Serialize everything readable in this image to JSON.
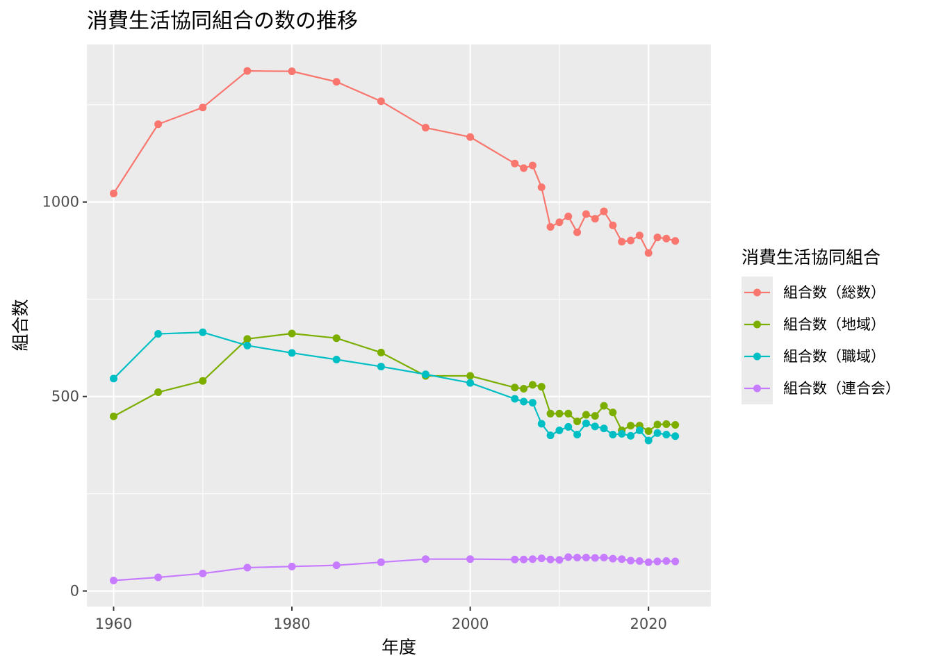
{
  "chart_data": {
    "type": "line",
    "title": "消費生活協同組合の数の推移",
    "xlabel": "年度",
    "ylabel": "組合数",
    "xlim": [
      1957,
      2027
    ],
    "ylim": [
      -40,
      1405
    ],
    "x_ticks": [
      1960,
      1980,
      2000,
      2020
    ],
    "y_ticks": [
      0,
      500,
      1000
    ],
    "grid": true,
    "legend": {
      "title": "消費生活協同組合",
      "position": "right"
    },
    "series": [
      {
        "name": "組合数（総数）",
        "color": "#F8766D",
        "points": [
          [
            1960,
            1022
          ],
          [
            1965,
            1200
          ],
          [
            1970,
            1243
          ],
          [
            1975,
            1337
          ],
          [
            1980,
            1336
          ],
          [
            1985,
            1309
          ],
          [
            1990,
            1259
          ],
          [
            1995,
            1191
          ],
          [
            2000,
            1167
          ],
          [
            2005,
            1099
          ],
          [
            2006,
            1087
          ],
          [
            2007,
            1094
          ],
          [
            2008,
            1038
          ],
          [
            2009,
            936
          ],
          [
            2010,
            948
          ],
          [
            2011,
            963
          ],
          [
            2012,
            922
          ],
          [
            2013,
            969
          ],
          [
            2014,
            957
          ],
          [
            2015,
            976
          ],
          [
            2016,
            940
          ],
          [
            2017,
            898
          ],
          [
            2018,
            901
          ],
          [
            2019,
            914
          ],
          [
            2020,
            869
          ],
          [
            2021,
            909
          ],
          [
            2022,
            906
          ],
          [
            2023,
            900
          ]
        ]
      },
      {
        "name": "組合数（地域）",
        "color": "#7CAE00",
        "points": [
          [
            1960,
            449
          ],
          [
            1965,
            511
          ],
          [
            1970,
            540
          ],
          [
            1975,
            648
          ],
          [
            1980,
            662
          ],
          [
            1985,
            650
          ],
          [
            1990,
            613
          ],
          [
            1995,
            553
          ],
          [
            2000,
            553
          ],
          [
            2005,
            523
          ],
          [
            2006,
            520
          ],
          [
            2007,
            530
          ],
          [
            2008,
            525
          ],
          [
            2009,
            456
          ],
          [
            2010,
            456
          ],
          [
            2011,
            456
          ],
          [
            2012,
            436
          ],
          [
            2013,
            453
          ],
          [
            2014,
            450
          ],
          [
            2015,
            476
          ],
          [
            2016,
            459
          ],
          [
            2017,
            413
          ],
          [
            2018,
            425
          ],
          [
            2019,
            425
          ],
          [
            2020,
            411
          ],
          [
            2021,
            428
          ],
          [
            2022,
            429
          ],
          [
            2023,
            427
          ]
        ]
      },
      {
        "name": "組合数（職域）",
        "color": "#00BFC4",
        "points": [
          [
            1960,
            546
          ],
          [
            1965,
            661
          ],
          [
            1970,
            665
          ],
          [
            1975,
            631
          ],
          [
            1980,
            612
          ],
          [
            1985,
            595
          ],
          [
            1990,
            577
          ],
          [
            1995,
            557
          ],
          [
            2000,
            535
          ],
          [
            2005,
            494
          ],
          [
            2006,
            487
          ],
          [
            2007,
            484
          ],
          [
            2008,
            430
          ],
          [
            2009,
            400
          ],
          [
            2010,
            413
          ],
          [
            2011,
            422
          ],
          [
            2012,
            402
          ],
          [
            2013,
            431
          ],
          [
            2014,
            423
          ],
          [
            2015,
            418
          ],
          [
            2016,
            402
          ],
          [
            2017,
            404
          ],
          [
            2018,
            399
          ],
          [
            2019,
            413
          ],
          [
            2020,
            387
          ],
          [
            2021,
            406
          ],
          [
            2022,
            402
          ],
          [
            2023,
            398
          ]
        ]
      },
      {
        "name": "組合数（連合会）",
        "color": "#C77CFF",
        "points": [
          [
            1960,
            27
          ],
          [
            1965,
            35
          ],
          [
            1970,
            45
          ],
          [
            1975,
            60
          ],
          [
            1980,
            63
          ],
          [
            1985,
            66
          ],
          [
            1990,
            74
          ],
          [
            1995,
            82
          ],
          [
            2000,
            82
          ],
          [
            2005,
            81
          ],
          [
            2006,
            81
          ],
          [
            2007,
            82
          ],
          [
            2008,
            84
          ],
          [
            2009,
            81
          ],
          [
            2010,
            80
          ],
          [
            2011,
            87
          ],
          [
            2012,
            86
          ],
          [
            2013,
            86
          ],
          [
            2014,
            85
          ],
          [
            2015,
            86
          ],
          [
            2016,
            83
          ],
          [
            2017,
            82
          ],
          [
            2018,
            78
          ],
          [
            2019,
            77
          ],
          [
            2020,
            74
          ],
          [
            2021,
            76
          ],
          [
            2022,
            77
          ],
          [
            2023,
            76
          ]
        ]
      }
    ]
  }
}
